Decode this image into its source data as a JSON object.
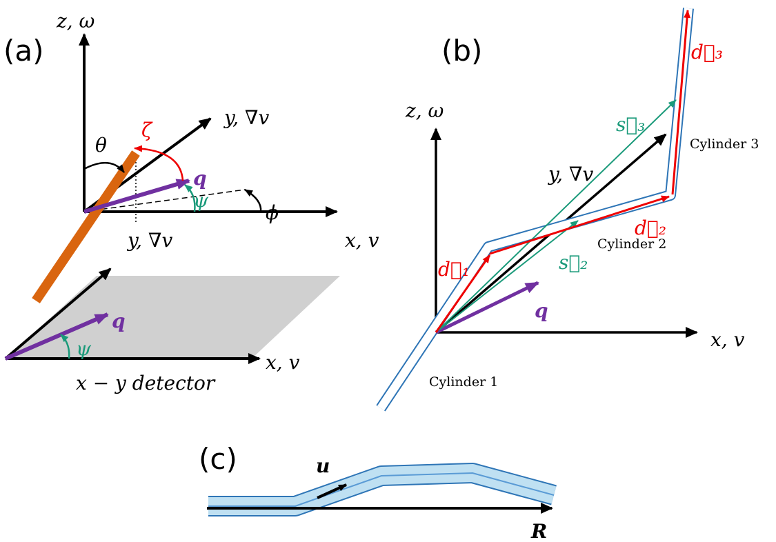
{
  "panel_a": {
    "label": "(a)",
    "z_axis": "z, ω",
    "y_axis_top": "y, ∇v",
    "theta": "θ",
    "zeta": "ζ",
    "q_top": "q",
    "psi_top": "ψ",
    "phi": "ϕ",
    "x_axis_top": "x, v",
    "y_axis_bottom": "y, ∇v",
    "q_bottom": "q",
    "psi_bottom": "ψ",
    "x_axis_bottom": "x, v",
    "detector": "x − y detector"
  },
  "panel_b": {
    "label": "(b)",
    "z_axis": "z, ω",
    "y_axis": "y, ∇v",
    "x_axis": "x, v",
    "q": "q",
    "d1": "d⃗₁",
    "d2": "d⃗₂",
    "d3": "d⃗₃",
    "s2": "s⃗₂",
    "s3": "s⃗₃",
    "cylinder_1": "Cylinder 1",
    "cylinder_2": "Cylinder 2",
    "cylinder_3": "Cylinder 3"
  },
  "panel_c": {
    "label": "(c)",
    "u": "u",
    "R": "R"
  }
}
